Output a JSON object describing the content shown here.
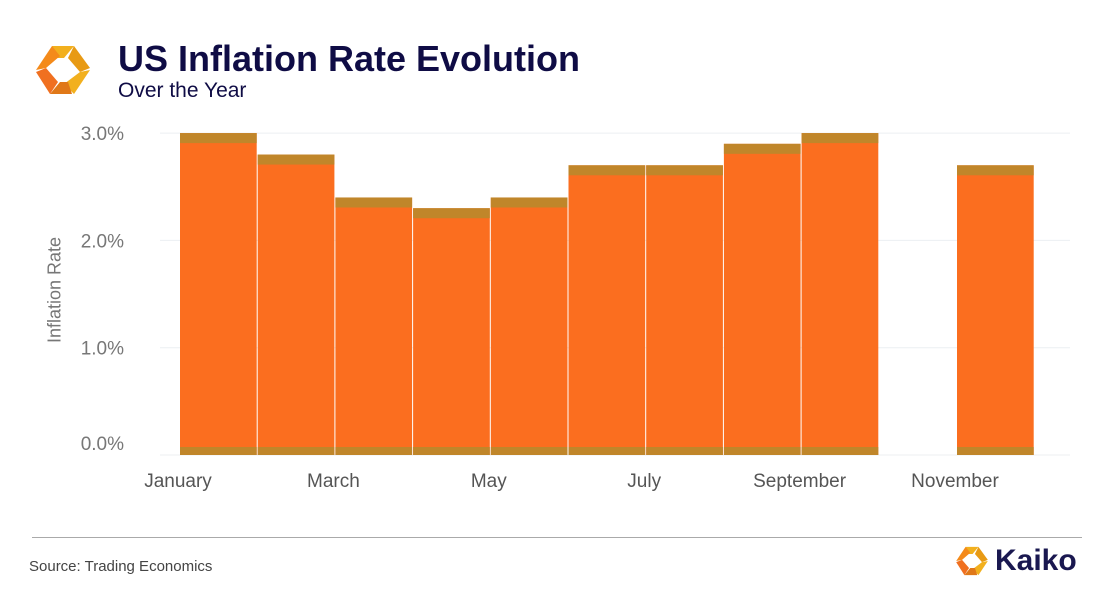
{
  "header": {
    "title": "US Inflation Rate Evolution",
    "subtitle": "Over the Year"
  },
  "footer": {
    "source": "Source: Trading Economics",
    "brand": "Kaiko"
  },
  "colors": {
    "bar": "#fb6e1f",
    "band": "#c0862a",
    "title": "#0f0c45"
  },
  "chart_data": {
    "type": "bar",
    "title": "US Inflation Rate Evolution",
    "subtitle": "Over the Year",
    "xlabel": "",
    "ylabel": "Inflation Rate",
    "categories": [
      "January",
      "February",
      "March",
      "April",
      "May",
      "June",
      "July",
      "August",
      "September",
      "October",
      "November"
    ],
    "values": [
      3.0,
      2.8,
      2.4,
      2.3,
      2.4,
      2.7,
      2.7,
      2.9,
      3.0,
      null,
      2.7
    ],
    "xticks": [
      "January",
      "March",
      "May",
      "July",
      "September",
      "November"
    ],
    "yticks": [
      "0.0%",
      "1.0%",
      "2.0%",
      "3.0%"
    ],
    "ytick_values": [
      0,
      1,
      2,
      3
    ],
    "ylim": [
      0,
      3.0
    ],
    "grid": true
  }
}
